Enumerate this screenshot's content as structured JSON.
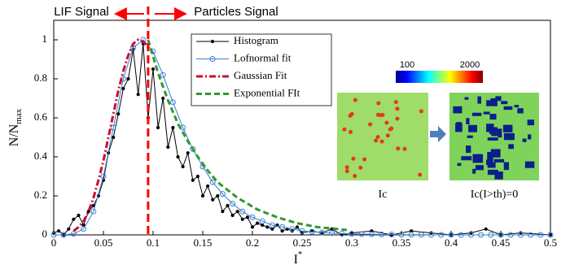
{
  "chart_data": {
    "type": "line",
    "x_label": {
      "main": "I",
      "sup": "*"
    },
    "y_label": {
      "main": "N/N",
      "sub": "max"
    },
    "xlim": [
      0,
      0.5
    ],
    "ylim": [
      0,
      1.1
    ],
    "xticks": [
      0,
      0.05,
      0.1,
      0.15,
      0.2,
      0.25,
      0.3,
      0.35,
      0.4,
      0.45,
      0.5
    ],
    "yticks": [
      0,
      0.2,
      0.4,
      0.6,
      0.8,
      1
    ],
    "legend": "top-center",
    "series": [
      {
        "name": "Histogram",
        "color": "#000000",
        "line_style": "solid",
        "marker": "dot",
        "x": [
          0,
          0.005,
          0.01,
          0.015,
          0.02,
          0.025,
          0.03,
          0.035,
          0.04,
          0.045,
          0.05,
          0.055,
          0.06,
          0.065,
          0.07,
          0.075,
          0.08,
          0.085,
          0.09,
          0.095,
          0.1,
          0.105,
          0.11,
          0.115,
          0.12,
          0.125,
          0.13,
          0.135,
          0.14,
          0.145,
          0.15,
          0.155,
          0.16,
          0.165,
          0.17,
          0.175,
          0.18,
          0.185,
          0.19,
          0.195,
          0.2,
          0.205,
          0.21,
          0.215,
          0.22,
          0.225,
          0.23,
          0.235,
          0.24,
          0.245,
          0.25,
          0.26,
          0.27,
          0.28,
          0.29,
          0.3,
          0.32,
          0.34,
          0.36,
          0.38,
          0.4,
          0.42,
          0.435,
          0.45,
          0.47,
          0.5
        ],
        "values": [
          0.01,
          0.02,
          0,
          0.03,
          0.08,
          0.1,
          0.05,
          0.12,
          0.15,
          0.2,
          0.28,
          0.42,
          0.5,
          0.62,
          0.75,
          0.8,
          0.95,
          0.72,
          0.98,
          0.6,
          0.85,
          0.55,
          0.7,
          0.45,
          0.55,
          0.4,
          0.35,
          0.42,
          0.28,
          0.3,
          0.2,
          0.25,
          0.18,
          0.2,
          0.12,
          0.15,
          0.1,
          0.12,
          0.08,
          0.09,
          0.04,
          0.06,
          0.05,
          0.04,
          0.03,
          0.05,
          0.02,
          0.03,
          0.02,
          0.04,
          0.01,
          0.02,
          0.01,
          0.03,
          0,
          0.01,
          0.02,
          0,
          0.02,
          0.01,
          0,
          0.01,
          0.03,
          0,
          0.01,
          0
        ]
      },
      {
        "name": "Lofnormal fit",
        "color": "#3b7fd4",
        "line_style": "solid",
        "marker": "circle",
        "x": [
          0,
          0.01,
          0.02,
          0.03,
          0.04,
          0.05,
          0.06,
          0.07,
          0.08,
          0.09,
          0.1,
          0.11,
          0.12,
          0.13,
          0.14,
          0.15,
          0.16,
          0.17,
          0.18,
          0.19,
          0.2,
          0.21,
          0.22,
          0.23,
          0.24,
          0.25,
          0.26,
          0.27,
          0.28,
          0.29,
          0.3,
          0.31,
          0.32,
          0.33,
          0.34,
          0.35,
          0.36,
          0.37,
          0.38,
          0.39,
          0.4,
          0.41,
          0.42,
          0.43,
          0.44,
          0.45,
          0.46,
          0.47,
          0.48,
          0.49,
          0.5
        ],
        "values": [
          0,
          0,
          0.005,
          0.03,
          0.12,
          0.3,
          0.55,
          0.8,
          0.96,
          1,
          0.94,
          0.82,
          0.68,
          0.55,
          0.44,
          0.35,
          0.27,
          0.21,
          0.16,
          0.12,
          0.09,
          0.07,
          0.05,
          0.04,
          0.03,
          0.02,
          0.016,
          0.012,
          0.009,
          0.007,
          0.005,
          0.004,
          0.003,
          0.002,
          0.002,
          0.001,
          0.001,
          0.001,
          0,
          0,
          0,
          0,
          0,
          0,
          0,
          0,
          0,
          0,
          0,
          0,
          0
        ]
      },
      {
        "name": "Gaussian Fit",
        "color": "#c8102e",
        "line_style": "dashdot",
        "x": [
          0.02,
          0.025,
          0.03,
          0.035,
          0.04,
          0.045,
          0.05,
          0.055,
          0.06,
          0.065,
          0.07,
          0.075,
          0.08,
          0.085,
          0.09,
          0.095
        ],
        "values": [
          0.02,
          0.04,
          0.07,
          0.12,
          0.19,
          0.28,
          0.38,
          0.5,
          0.62,
          0.74,
          0.84,
          0.92,
          0.98,
          1,
          0.99,
          0.96
        ]
      },
      {
        "name": "Exponential FIt",
        "color": "#2e9a2e",
        "line_style": "dashed",
        "x": [
          0.095,
          0.105,
          0.115,
          0.125,
          0.135,
          0.145,
          0.155,
          0.165,
          0.175,
          0.185,
          0.195,
          0.205,
          0.215,
          0.225,
          0.235,
          0.245,
          0.255,
          0.265,
          0.275,
          0.285,
          0.295
        ],
        "values": [
          1,
          0.83,
          0.69,
          0.57,
          0.48,
          0.4,
          0.33,
          0.27,
          0.23,
          0.19,
          0.16,
          0.13,
          0.11,
          0.09,
          0.075,
          0.06,
          0.05,
          0.04,
          0.035,
          0.03,
          0.025
        ]
      }
    ],
    "threshold_line": {
      "x": 0.095,
      "color": "#ff0000"
    },
    "annotations": {
      "left": "LIF Signal",
      "right": "Particles Signal",
      "arrow_color": "#ff0000"
    },
    "inset": {
      "colorbar_min": 100,
      "colorbar_max": 2000,
      "left_label": "Ic",
      "right_label": "Ic(I>th)=0"
    }
  }
}
